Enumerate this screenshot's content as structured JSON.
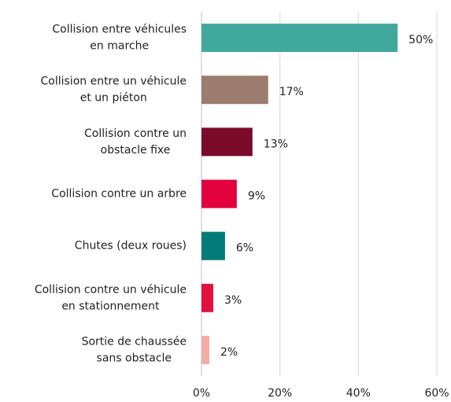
{
  "chart_data": {
    "type": "hbar",
    "categories": [
      "Collision entre véhicules\nen marche",
      "Collision entre un véhicule\net un piéton",
      "Collision contre un\nobstacle fixe",
      "Collision contre un arbre",
      "Chutes (deux roues)",
      "Collision contre un véhicule\nen stationnement",
      "Sortie de chaussée\nsans obstacle"
    ],
    "values": [
      50,
      17,
      13,
      9,
      6,
      3,
      2
    ],
    "value_labels": [
      "50%",
      "17%",
      "13%",
      "9%",
      "6%",
      "3%",
      "2%"
    ],
    "colors": [
      "#40a89c",
      "#9b7c6f",
      "#7b0a2b",
      "#e2003d",
      "#007b78",
      "#e2103e",
      "#f3aca6"
    ],
    "xlim": [
      0,
      60
    ],
    "xticks": [
      {
        "value": 0,
        "label": "0%"
      },
      {
        "value": 20,
        "label": "20%"
      },
      {
        "value": 40,
        "label": "40%"
      },
      {
        "value": 60,
        "label": "60%"
      }
    ],
    "grid": true
  }
}
